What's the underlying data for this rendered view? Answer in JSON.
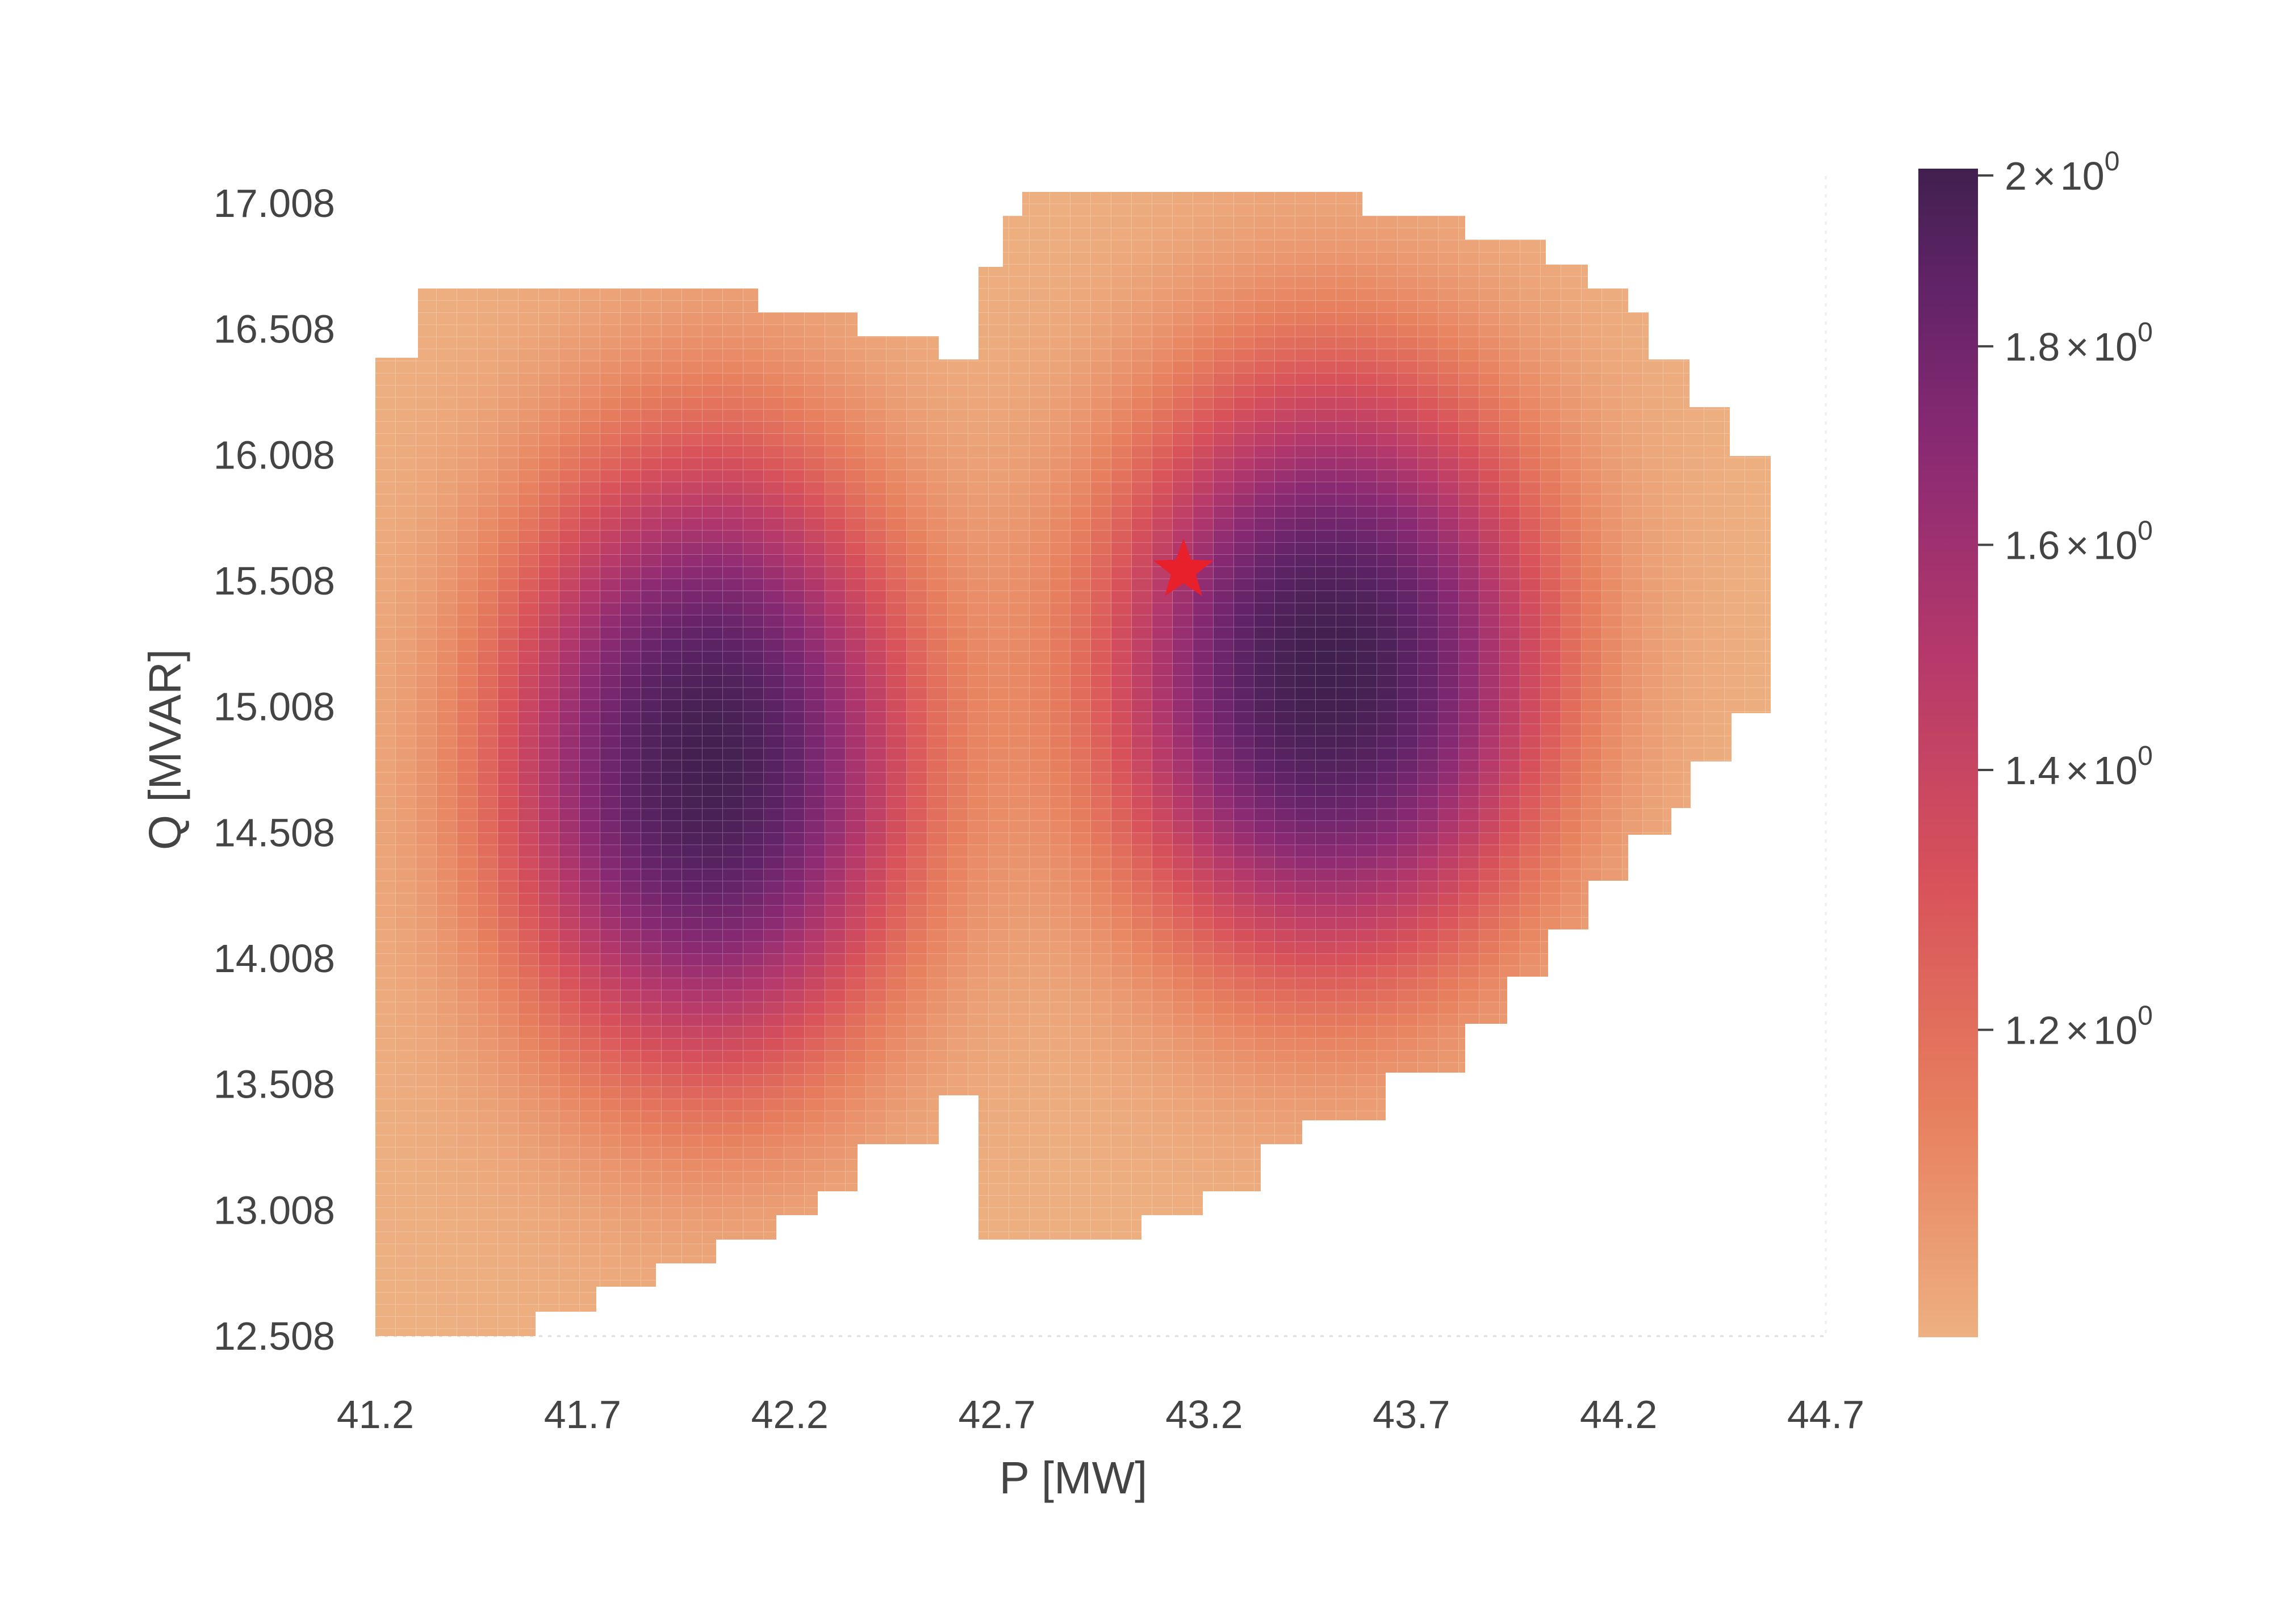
{
  "chart_data": {
    "type": "heatmap",
    "title": "",
    "xlabel": "P [MW]",
    "ylabel": "Q [MVAR]",
    "x_ticks": [
      "41.2",
      "41.7",
      "42.2",
      "42.7",
      "43.2",
      "43.7",
      "44.2",
      "44.7"
    ],
    "y_ticks": [
      "17.008",
      "16.508",
      "16.008",
      "15.508",
      "15.008",
      "14.508",
      "14.008",
      "13.508",
      "13.008",
      "12.508"
    ],
    "xlim": [
      41.2,
      44.7
    ],
    "ylim": [
      12.45,
      17.3
    ],
    "grid_step": {
      "p": 0.049,
      "q": 0.049
    },
    "colorbar": {
      "scale": "log",
      "range": [
        1.0,
        2.0
      ],
      "ticks": [
        {
          "value": 2.0,
          "mantissa": "2",
          "times": "×",
          "base": "10",
          "exp": "0"
        },
        {
          "value": 1.8,
          "mantissa": "1.8",
          "times": "×",
          "base": "10",
          "exp": "0"
        },
        {
          "value": 1.6,
          "mantissa": "1.6",
          "times": "×",
          "base": "10",
          "exp": "0"
        },
        {
          "value": 1.4,
          "mantissa": "1.4",
          "times": "×",
          "base": "10",
          "exp": "0"
        },
        {
          "value": 1.2,
          "mantissa": "1.2",
          "times": "×",
          "base": "10",
          "exp": "0"
        }
      ],
      "colors": [
        "#edb081",
        "#e7805e",
        "#d8525a",
        "#b6396a",
        "#8a2a73",
        "#612367",
        "#40204f"
      ]
    },
    "peaks": [
      {
        "p": 42.0,
        "q": 14.8,
        "value": 1.98
      },
      {
        "p": 43.5,
        "q": 15.15,
        "value": 2.0
      }
    ],
    "marker": {
      "shape": "star",
      "p": 43.15,
      "q": 15.55,
      "color": "#e8202c"
    }
  }
}
